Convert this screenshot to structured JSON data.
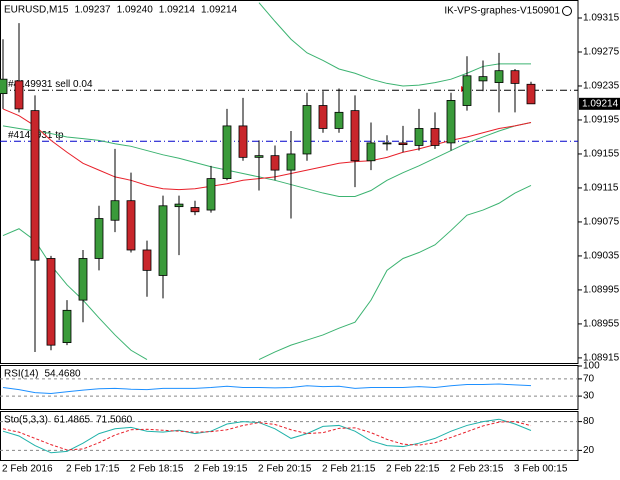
{
  "chart_data": [
    {
      "type": "candlestick",
      "title": "EURUSD,M15",
      "header_values": [
        "1.09237",
        "1.09240",
        "1.09214",
        "1.09214"
      ],
      "watermark": "IK-VPS-graphes-V150901",
      "categories": [
        "2 Feb 2016",
        null,
        null,
        null,
        "2 Feb 17:15",
        null,
        null,
        null,
        "2 Feb 18:15",
        null,
        null,
        null,
        "2 Feb 19:15",
        null,
        null,
        null,
        "2 Feb 20:15",
        null,
        null,
        null,
        "2 Feb 21:15",
        null,
        null,
        null,
        "2 Feb 22:15",
        null,
        null,
        null,
        "2 Feb 23:15",
        null,
        null,
        null,
        "3 Feb 00:15",
        null
      ],
      "open": [
        1.09226,
        1.09241,
        1.09206,
        1.09032,
        1.08933,
        1.08983,
        1.09032,
        1.09077,
        1.091,
        1.09042,
        1.09012,
        1.09093,
        1.09092,
        1.09089,
        1.09126,
        1.09188,
        1.09151,
        1.09153,
        1.09136,
        1.09155,
        1.09212,
        1.09185,
        1.09206,
        1.09147,
        1.09167,
        1.09168,
        1.09165,
        1.09185,
        1.09168,
        1.09212,
        1.09241,
        1.09239,
        1.09253,
        1.09237
      ],
      "high": [
        1.0929,
        1.09309,
        1.09224,
        1.09035,
        1.08983,
        1.09042,
        1.09094,
        1.09161,
        1.09133,
        1.09053,
        1.09106,
        1.09106,
        1.091,
        1.09141,
        1.09208,
        1.09221,
        1.09171,
        1.09165,
        1.09182,
        1.09227,
        1.09229,
        1.09232,
        1.09224,
        1.09192,
        1.09177,
        1.09188,
        1.09208,
        1.09204,
        1.09227,
        1.0927,
        1.09265,
        1.09274,
        1.09255,
        1.0924
      ],
      "low": [
        1.09208,
        1.09204,
        1.08922,
        1.08924,
        1.0893,
        1.08957,
        1.09018,
        1.09063,
        1.09039,
        1.08987,
        1.08985,
        1.09036,
        1.09083,
        1.09086,
        1.09124,
        1.09147,
        1.09112,
        1.09124,
        1.09079,
        1.09147,
        1.0918,
        1.0918,
        1.09116,
        1.09136,
        1.09159,
        1.09157,
        1.09159,
        1.09161,
        1.09159,
        1.09206,
        1.09229,
        1.09204,
        1.09204,
        1.09214
      ],
      "close": [
        1.09243,
        1.09208,
        1.0903,
        1.0893,
        1.08971,
        1.09032,
        1.09079,
        1.091,
        1.09042,
        1.09018,
        1.09094,
        1.09096,
        1.09087,
        1.09126,
        1.09188,
        1.09151,
        1.09153,
        1.09136,
        1.09155,
        1.09212,
        1.09185,
        1.09204,
        1.09147,
        1.09168,
        1.09168,
        1.09166,
        1.09185,
        1.09165,
        1.09218,
        1.09247,
        1.09246,
        1.09253,
        1.09238,
        1.09214
      ],
      "up_color": "#3a9a3a",
      "down_color": "#c8262b",
      "lines": [
        {
          "color": "#3cb371",
          "values": [
            null,
            null,
            null,
            null,
            null,
            null,
            null,
            null,
            null,
            null,
            null,
            null,
            null,
            null,
            null,
            null,
            1.09333,
            1.09311,
            1.0929,
            1.09274,
            1.09265,
            1.09255,
            1.0925,
            1.09243,
            1.09238,
            1.09235,
            1.09236,
            1.09239,
            1.09243,
            1.0925,
            1.09258,
            1.09261,
            1.09261,
            1.09261
          ]
        },
        {
          "color": "#3cb371",
          "values": [
            1.09188,
            1.09185,
            1.09182,
            1.09179,
            1.09175,
            1.09173,
            1.09171,
            1.09167,
            1.09164,
            1.09159,
            1.09154,
            1.0915,
            1.09145,
            1.0914,
            1.09136,
            1.09132,
            1.09128,
            1.09124,
            1.09119,
            1.09114,
            1.09109,
            1.09105,
            1.09105,
            1.09112,
            1.09124,
            1.09133,
            1.09141,
            1.0915,
            1.09159,
            1.09168,
            1.09175,
            1.09182,
            1.09188,
            1.09192
          ]
        },
        {
          "color": "#3cb371",
          "values": [
            1.09059,
            1.09067,
            1.09053,
            1.09024,
            1.09001,
            1.08983,
            1.08962,
            1.08942,
            1.08924,
            1.08913,
            null,
            null,
            null,
            null,
            null,
            null,
            1.08913,
            1.08922,
            1.0893,
            1.08936,
            1.08942,
            1.0895,
            1.08957,
            1.08983,
            1.09018,
            1.09032,
            1.09039,
            1.09048,
            1.09065,
            1.09083,
            1.09089,
            1.09097,
            1.09109,
            1.09118
          ]
        },
        {
          "color": "#e8202a",
          "values": [
            1.09208,
            1.092,
            1.09188,
            1.09171,
            1.09157,
            1.09144,
            1.09136,
            1.09128,
            1.09124,
            1.09118,
            1.09114,
            1.09113,
            1.09114,
            1.09117,
            1.0912,
            1.09124,
            1.09126,
            1.09128,
            1.09132,
            1.09136,
            1.0914,
            1.09144,
            1.09146,
            1.09147,
            1.09151,
            1.09157,
            1.09161,
            1.09166,
            1.09171,
            1.09175,
            1.0918,
            1.09185,
            1.09188,
            1.09192
          ]
        }
      ],
      "levels": [
        {
          "value": 1.0923,
          "label": "#4149931 sell 0.04",
          "color": "#000000"
        },
        {
          "value": 1.0917,
          "label": "#4149931 tp",
          "color": "#0000cc"
        }
      ],
      "ylim": [
        1.08909,
        1.09335
      ],
      "yticks": [
        1.09315,
        1.09275,
        1.09235,
        1.09195,
        1.09155,
        1.09115,
        1.09075,
        1.09035,
        1.08995,
        1.08955,
        1.08915
      ]
    },
    {
      "type": "line",
      "title": "RSI(14)",
      "series": [
        {
          "color": "#1e90ff",
          "values": [
            50,
            45,
            38,
            36,
            40,
            44,
            47,
            48,
            46,
            45,
            48,
            48,
            48,
            50,
            53,
            50,
            50,
            49,
            50,
            54,
            52,
            53,
            48,
            50,
            50,
            50,
            52,
            50,
            54,
            57,
            57,
            58,
            56,
            54.468
          ],
          "value_labels": [
            null,
            null,
            null,
            null,
            null,
            null,
            null,
            null,
            null,
            null,
            null,
            null,
            null,
            null,
            null,
            null,
            null,
            null,
            null,
            null,
            null,
            null,
            null,
            null,
            null,
            null,
            null,
            null,
            null,
            null,
            null,
            null,
            null,
            "54.4680"
          ]
        }
      ],
      "ylim": [
        0,
        100
      ],
      "yticks": [
        100,
        70,
        30
      ],
      "grid": "dashed"
    },
    {
      "type": "line",
      "title": "Sto(5,3,3)",
      "series": [
        {
          "color": "#20b2aa",
          "values": [
            60,
            50,
            30,
            15,
            18,
            35,
            55,
            65,
            68,
            60,
            58,
            62,
            55,
            60,
            75,
            80,
            78,
            65,
            45,
            55,
            70,
            72,
            60,
            40,
            30,
            28,
            35,
            45,
            60,
            72,
            80,
            85,
            75,
            61.4865
          ],
          "value_labels": [
            null,
            null,
            null,
            null,
            null,
            null,
            null,
            null,
            null,
            null,
            null,
            null,
            null,
            null,
            null,
            null,
            null,
            null,
            null,
            null,
            null,
            null,
            null,
            null,
            null,
            null,
            null,
            null,
            null,
            null,
            null,
            null,
            null,
            "61.4865"
          ]
        },
        {
          "color": "#e8202a",
          "dash": true,
          "values": [
            65,
            58,
            45,
            32,
            21,
            23,
            36,
            52,
            63,
            64,
            62,
            60,
            58,
            59,
            63,
            72,
            78,
            74,
            63,
            55,
            57,
            66,
            67,
            57,
            43,
            33,
            31,
            36,
            47,
            59,
            71,
            79,
            80,
            71.506
          ],
          "value_labels": [
            null,
            null,
            null,
            null,
            null,
            null,
            null,
            null,
            null,
            null,
            null,
            null,
            null,
            null,
            null,
            null,
            null,
            null,
            null,
            null,
            null,
            null,
            null,
            null,
            null,
            null,
            null,
            null,
            null,
            null,
            null,
            null,
            null,
            "71.5060"
          ]
        }
      ],
      "ylim": [
        0,
        100
      ],
      "yticks": [
        80,
        20
      ],
      "grid": "dashed"
    }
  ]
}
